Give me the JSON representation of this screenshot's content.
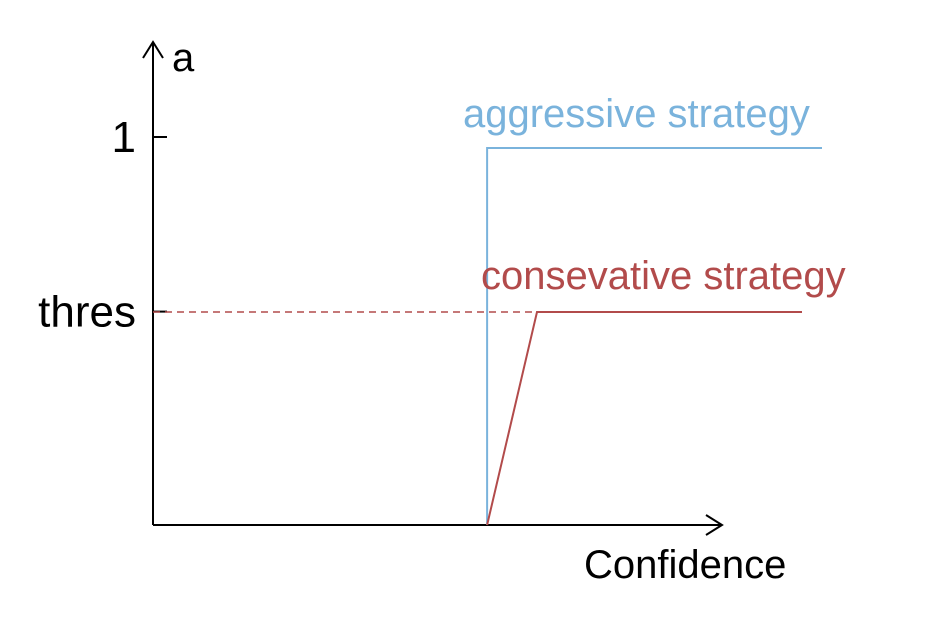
{
  "chart_data": {
    "type": "line",
    "xlabel": "Confidence",
    "ylabel": "a",
    "y_ticks": [
      {
        "label": "1",
        "value": 1
      },
      {
        "label": "thres",
        "value": 0.55
      }
    ],
    "series": [
      {
        "name": "aggressive strategy",
        "color": "#7ab3dc",
        "points": [
          [
            0.43,
            0
          ],
          [
            0.43,
            0.97
          ],
          [
            1.0,
            0.97
          ]
        ]
      },
      {
        "name": "consevative strategy",
        "color": "#b24b4b",
        "points": [
          [
            0.43,
            0
          ],
          [
            0.66,
            0.55
          ],
          [
            1.0,
            0.55
          ]
        ]
      }
    ],
    "reference_line": {
      "style": "dashed",
      "color": "#b24b4b",
      "from_x": 0,
      "to_x": 0.66,
      "y": 0.55
    },
    "grid": false
  }
}
